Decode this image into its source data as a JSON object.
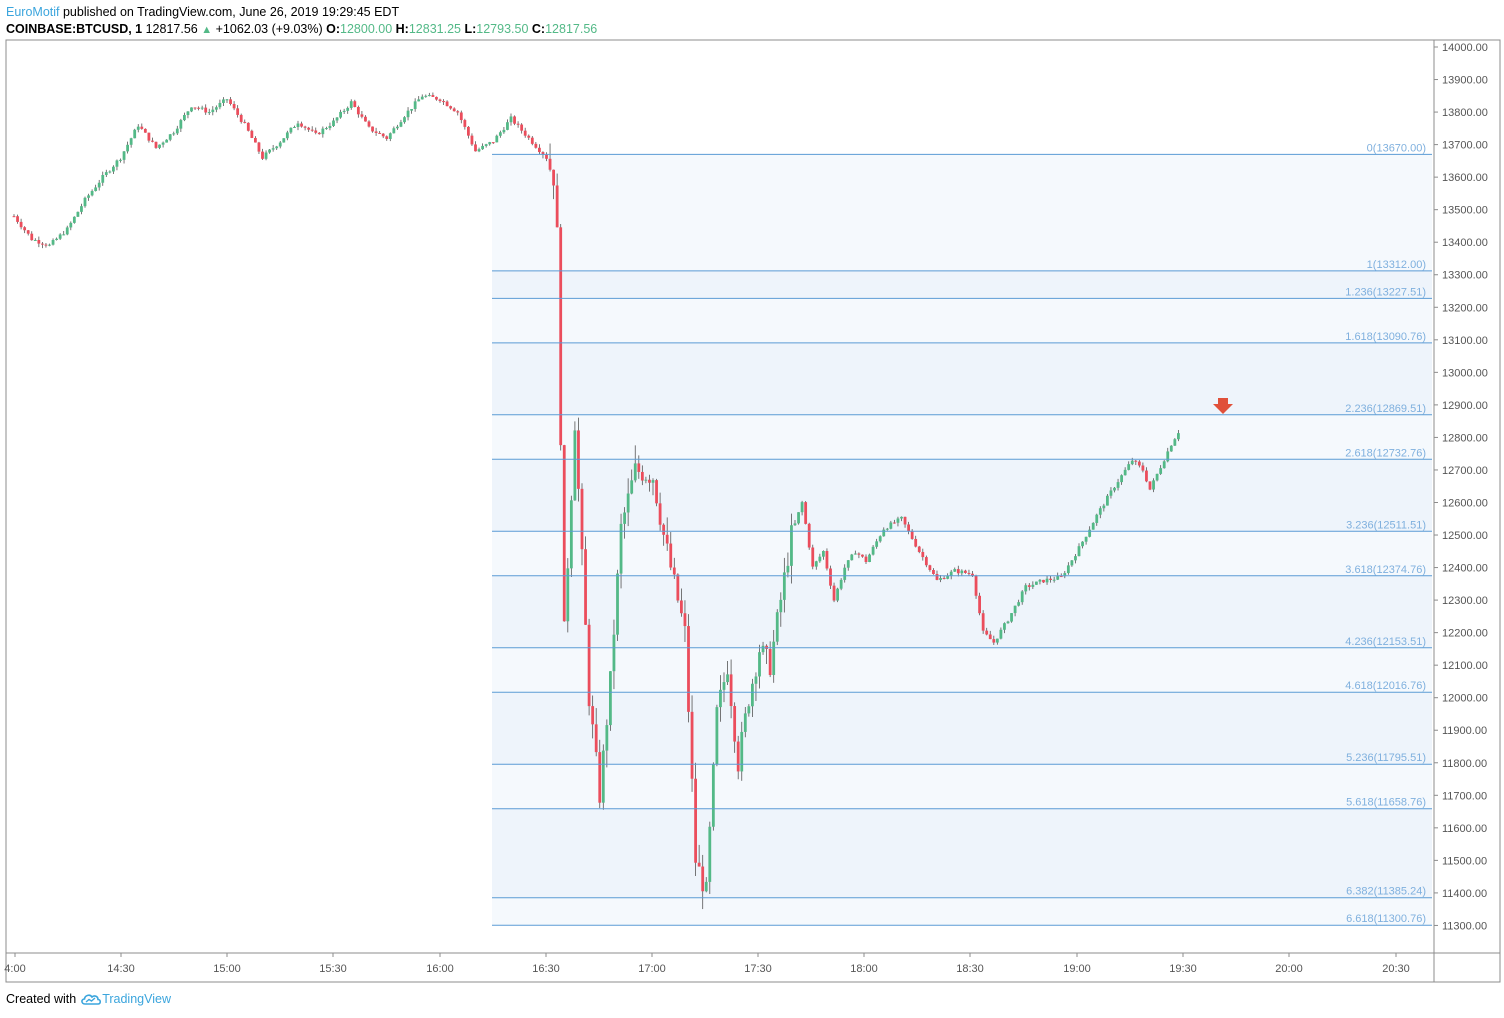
{
  "header": {
    "author": "EuroMotif",
    "published_text": "published on TradingView.com, June 26, 2019 19:29:45 EDT",
    "symbol": "COINBASE:BTCUSD, 1",
    "last": "12817.56",
    "change": "+1062.03 (+9.03%)",
    "o_label": "O:",
    "o_value": "12800.00",
    "h_label": "H:",
    "h_value": "12831.25",
    "l_label": "L:",
    "l_value": "12793.50",
    "c_label": "C:",
    "c_value": "12817.56"
  },
  "footer": {
    "created_with": "Created with",
    "brand": "TradingView"
  },
  "colors": {
    "up": "#53b987",
    "down": "#eb4d5c",
    "fib_line": "#5b9bd5",
    "fib_label": "#7fb0de",
    "fib_fill": "#f2f7fd",
    "axis_text": "#555555",
    "axis_line": "#8c8c8c",
    "marker": "#e0503a"
  },
  "chart_data": {
    "type": "candlestick",
    "instrument": "COINBASE:BTCUSD",
    "interval": "1",
    "ylim": [
      11200,
      14020
    ],
    "y_ticks": [
      "14000.00",
      "13900.00",
      "13800.00",
      "13700.00",
      "13600.00",
      "13500.00",
      "13400.00",
      "13300.00",
      "13200.00",
      "13100.00",
      "13000.00",
      "12900.00",
      "12800.00",
      "12700.00",
      "12600.00",
      "12500.00",
      "12400.00",
      "12300.00",
      "12200.00",
      "12100.00",
      "12000.00",
      "11900.00",
      "11800.00",
      "11700.00",
      "11600.00",
      "11500.00",
      "11400.00",
      "11300.00"
    ],
    "x_ticks": [
      "4:00",
      "14:30",
      "15:00",
      "15:30",
      "16:00",
      "16:30",
      "17:00",
      "17:30",
      "18:00",
      "18:30",
      "19:00",
      "19:30",
      "20:00",
      "20:30"
    ],
    "fib_levels": [
      {
        "label": "0(13670.00)",
        "value": 13670.0
      },
      {
        "label": "1(13312.00)",
        "value": 13312.0
      },
      {
        "label": "1.236(13227.51)",
        "value": 13227.51
      },
      {
        "label": "1.618(13090.76)",
        "value": 13090.76
      },
      {
        "label": "2.236(12869.51)",
        "value": 12869.51
      },
      {
        "label": "2.618(12732.76)",
        "value": 12732.76
      },
      {
        "label": "3.236(12511.51)",
        "value": 12511.51
      },
      {
        "label": "3.618(12374.76)",
        "value": 12374.76
      },
      {
        "label": "4.236(12153.51)",
        "value": 12153.51
      },
      {
        "label": "4.618(12016.76)",
        "value": 12016.76
      },
      {
        "label": "5.236(11795.51)",
        "value": 11795.51
      },
      {
        "label": "5.618(11658.76)",
        "value": 11658.76
      },
      {
        "label": "6.382(11385.24)",
        "value": 11385.24
      },
      {
        "label": "6.618(11300.76)",
        "value": 11300.76
      }
    ],
    "price_path": [
      [
        "14:00",
        13480
      ],
      [
        "14:05",
        13410
      ],
      [
        "14:10",
        13390
      ],
      [
        "14:15",
        13440
      ],
      [
        "14:20",
        13530
      ],
      [
        "14:25",
        13600
      ],
      [
        "14:30",
        13660
      ],
      [
        "14:35",
        13760
      ],
      [
        "14:40",
        13690
      ],
      [
        "14:45",
        13740
      ],
      [
        "14:50",
        13820
      ],
      [
        "14:55",
        13800
      ],
      [
        "15:00",
        13840
      ],
      [
        "15:05",
        13760
      ],
      [
        "15:10",
        13660
      ],
      [
        "15:15",
        13710
      ],
      [
        "15:20",
        13770
      ],
      [
        "15:25",
        13730
      ],
      [
        "15:30",
        13770
      ],
      [
        "15:35",
        13830
      ],
      [
        "15:40",
        13750
      ],
      [
        "15:45",
        13720
      ],
      [
        "15:50",
        13790
      ],
      [
        "15:55",
        13850
      ],
      [
        "16:00",
        13840
      ],
      [
        "16:05",
        13800
      ],
      [
        "16:10",
        13680
      ],
      [
        "16:15",
        13710
      ],
      [
        "16:20",
        13780
      ],
      [
        "16:25",
        13720
      ],
      [
        "16:30",
        13660
      ],
      [
        "16:32",
        13600
      ],
      [
        "16:33",
        13420
      ],
      [
        "16:35",
        12200
      ],
      [
        "16:38",
        12850
      ],
      [
        "16:42",
        12000
      ],
      [
        "16:45",
        11700
      ],
      [
        "16:48",
        12050
      ],
      [
        "16:51",
        12520
      ],
      [
        "16:55",
        12700
      ],
      [
        "17:00",
        12680
      ],
      [
        "17:03",
        12500
      ],
      [
        "17:06",
        12350
      ],
      [
        "17:09",
        12200
      ],
      [
        "17:12",
        11500
      ],
      [
        "17:15",
        11400
      ],
      [
        "17:18",
        11950
      ],
      [
        "17:21",
        12100
      ],
      [
        "17:24",
        11800
      ],
      [
        "17:27",
        12000
      ],
      [
        "17:30",
        12150
      ],
      [
        "17:33",
        12100
      ],
      [
        "17:36",
        12300
      ],
      [
        "17:39",
        12500
      ],
      [
        "17:42",
        12600
      ],
      [
        "17:45",
        12400
      ],
      [
        "17:48",
        12450
      ],
      [
        "17:51",
        12300
      ],
      [
        "17:54",
        12400
      ],
      [
        "17:57",
        12450
      ],
      [
        "18:00",
        12420
      ],
      [
        "18:05",
        12520
      ],
      [
        "18:10",
        12550
      ],
      [
        "18:15",
        12450
      ],
      [
        "18:20",
        12360
      ],
      [
        "18:25",
        12390
      ],
      [
        "18:30",
        12380
      ],
      [
        "18:33",
        12200
      ],
      [
        "18:36",
        12170
      ],
      [
        "18:40",
        12240
      ],
      [
        "18:45",
        12340
      ],
      [
        "18:50",
        12360
      ],
      [
        "18:55",
        12370
      ],
      [
        "19:00",
        12460
      ],
      [
        "19:05",
        12560
      ],
      [
        "19:10",
        12650
      ],
      [
        "19:15",
        12730
      ],
      [
        "19:18",
        12700
      ],
      [
        "19:20",
        12640
      ],
      [
        "19:23",
        12710
      ],
      [
        "19:26",
        12780
      ],
      [
        "19:28",
        12817.56
      ]
    ]
  }
}
